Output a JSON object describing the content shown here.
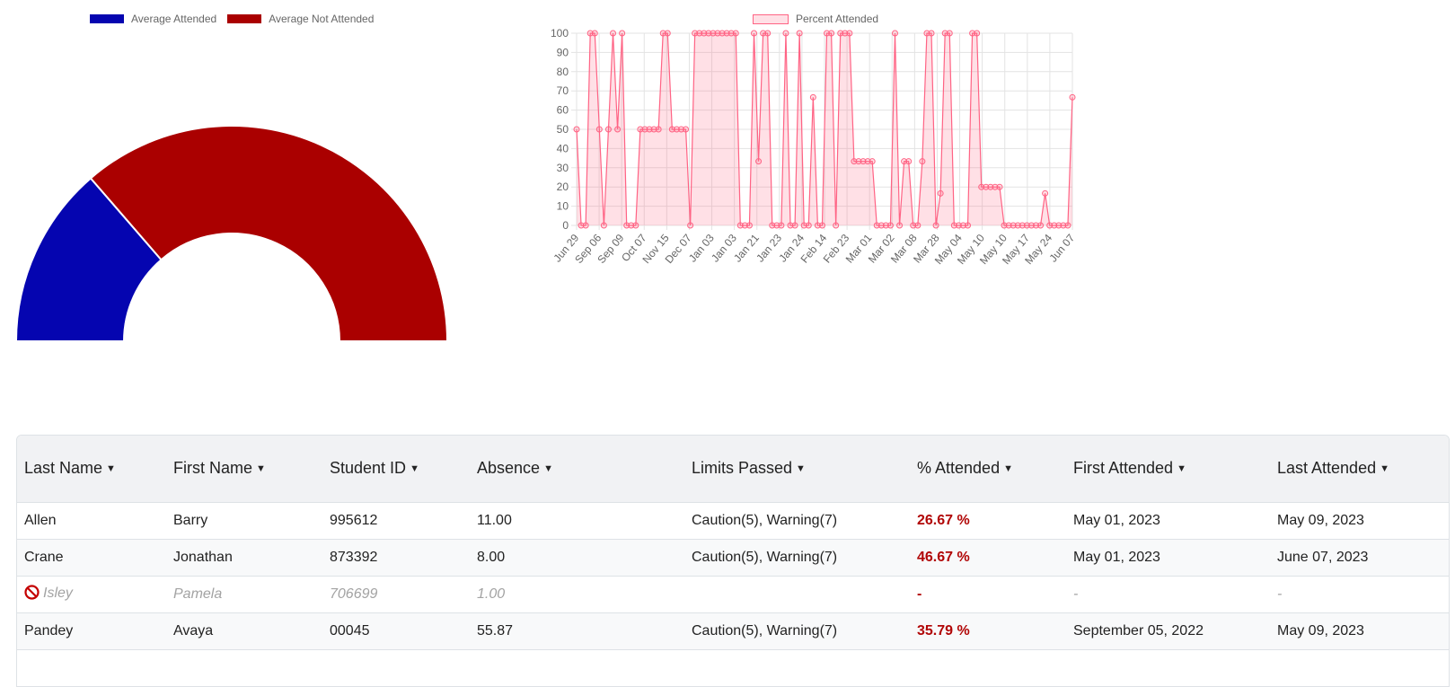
{
  "donut": {
    "legend": [
      {
        "label": "Average Attended",
        "color": "#0505b0"
      },
      {
        "label": "Average Not Attended",
        "color": "#aa0000"
      }
    ],
    "attended_fraction": 0.273
  },
  "chart_data": {
    "type": "area",
    "legend": "Percent Attended",
    "ylim": [
      0,
      100
    ],
    "yticks": [
      "0",
      "10",
      "20",
      "30",
      "40",
      "50",
      "60",
      "70",
      "80",
      "90",
      "100"
    ],
    "xtick_labels": [
      "Jun 29",
      "Sep 06",
      "Sep 09",
      "Oct 07",
      "Nov 15",
      "Dec 07",
      "Jan 03",
      "Jan 03",
      "Jan 21",
      "Jan 23",
      "Jan 24",
      "Feb 14",
      "Feb 23",
      "Mar 01",
      "Mar 02",
      "Mar 08",
      "Mar 28",
      "May 04",
      "May 10",
      "May 10",
      "May 17",
      "May 24",
      "Jun 07"
    ],
    "values": [
      50,
      0,
      0,
      100,
      100,
      50,
      0,
      50,
      100,
      50,
      100,
      0,
      0,
      0,
      50,
      50,
      50,
      50,
      50,
      100,
      100,
      50,
      50,
      50,
      50,
      0,
      100,
      100,
      100,
      100,
      100,
      100,
      100,
      100,
      100,
      100,
      0,
      0,
      0,
      100,
      33.33,
      100,
      100,
      0,
      0,
      0,
      100,
      0,
      0,
      100,
      0,
      0,
      66.67,
      0,
      0,
      100,
      100,
      0,
      100,
      100,
      100,
      33.33,
      33.33,
      33.33,
      33.33,
      33.33,
      0,
      0,
      0,
      0,
      100,
      0,
      33.33,
      33.33,
      0,
      0,
      33.33,
      100,
      100,
      0,
      16.67,
      100,
      100,
      0,
      0,
      0,
      0,
      100,
      100,
      20,
      20,
      20,
      20,
      20,
      0,
      0,
      0,
      0,
      0,
      0,
      0,
      0,
      0,
      16.67,
      0,
      0,
      0,
      0,
      0,
      66.67
    ],
    "line_color": "#ff6384",
    "fill_color": "rgba(255,99,132,0.2)"
  },
  "table": {
    "headers": [
      "Last Name",
      "First Name",
      "Student ID",
      "Absence",
      "Limits Passed",
      "% Attended",
      "First Attended",
      "Last Attended"
    ],
    "rows": [
      {
        "last": "Allen",
        "first": "Barry",
        "id": "995612",
        "absence": "11.00",
        "limits": "Caution(5), Warning(7)",
        "pct": "26.67 %",
        "first_att": "May 01, 2023",
        "last_att": "May 09, 2023"
      },
      {
        "last": "Crane",
        "first": "Jonathan",
        "id": "873392",
        "absence": "8.00",
        "limits": "Caution(5), Warning(7)",
        "pct": "46.67 %",
        "first_att": "May 01, 2023",
        "last_att": "June 07, 2023"
      },
      {
        "last": "Isley",
        "first": "Pamela",
        "id": "706699",
        "absence": "1.00",
        "limits": "",
        "pct": "-",
        "first_att": "-",
        "last_att": "-"
      },
      {
        "last": "Pandey",
        "first": "Avaya",
        "id": "00045",
        "absence": "55.87",
        "limits": "Caution(5), Warning(7)",
        "pct": "35.79 %",
        "first_att": "September 05, 2022",
        "last_att": "May 09, 2023"
      }
    ]
  }
}
